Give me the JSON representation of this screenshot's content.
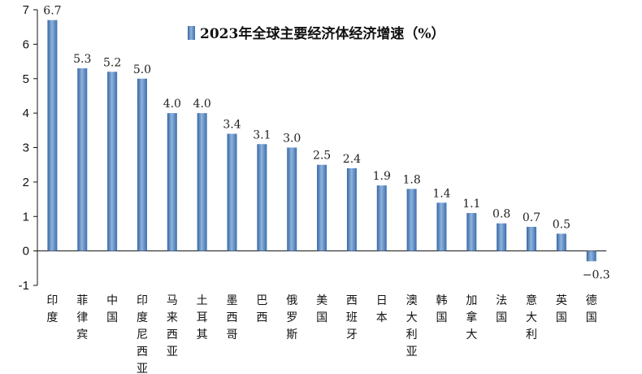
{
  "chart_data": {
    "type": "bar",
    "title": "",
    "xlabel": "",
    "ylabel": "",
    "ylim": [
      -1,
      7
    ],
    "yticks": [
      -1,
      0,
      1,
      2,
      3,
      4,
      5,
      6,
      7
    ],
    "ytick_labels": [
      "-1",
      "0",
      "1",
      "2",
      "3",
      "4",
      "5",
      "6",
      "7"
    ],
    "grid": false,
    "legend_position": "top-center",
    "categories": [
      "印度",
      "菲律宾",
      "中国",
      "印度尼西亚",
      "马来西亚",
      "土耳其",
      "墨西哥",
      "巴西",
      "俄罗斯",
      "美国",
      "西班牙",
      "日本",
      "澳大利亚",
      "韩国",
      "加拿大",
      "法国",
      "意大利",
      "英国",
      "德国"
    ],
    "series": [
      {
        "name": "2023年全球主要经济体经济增速（%）",
        "values": [
          6.7,
          5.3,
          5.2,
          5.0,
          4.0,
          4.0,
          3.4,
          3.1,
          3.0,
          2.5,
          2.4,
          1.9,
          1.8,
          1.4,
          1.1,
          0.8,
          0.7,
          0.5,
          -0.3
        ],
        "labels": [
          "6.7",
          "5.3",
          "5.2",
          "5.0",
          "4.0",
          "4.0",
          "3.4",
          "3.1",
          "3.0",
          "2.5",
          "2.4",
          "1.9",
          "1.8",
          "1.4",
          "1.1",
          "0.8",
          "0.7",
          "0.5",
          "−0.3"
        ],
        "color": "#4A7EBB"
      }
    ]
  }
}
